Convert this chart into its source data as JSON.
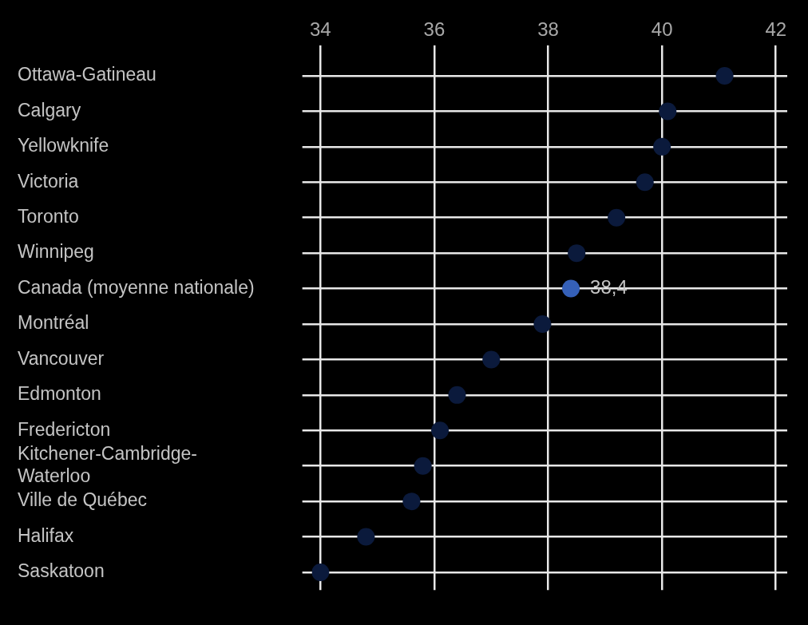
{
  "chart_data": {
    "type": "scatter",
    "orientation": "horizontal",
    "categories": [
      "Ottawa-Gatineau",
      "Calgary",
      "Yellowknife",
      "Victoria",
      "Toronto",
      "Winnipeg",
      "Canada (moyenne nationale)",
      "Montréal",
      "Vancouver",
      "Edmonton",
      "Fredericton",
      "Kitchener-Cambridge-Waterloo",
      "Ville de Québec",
      "Halifax",
      "Saskatoon"
    ],
    "values": [
      41.1,
      40.1,
      40.0,
      39.7,
      39.2,
      38.5,
      38.4,
      37.9,
      37.0,
      36.4,
      36.1,
      35.8,
      35.6,
      34.8,
      34.0
    ],
    "colors": [
      "#0b1a3c",
      "#0b1a3c",
      "#0b1a3c",
      "#0b1a3c",
      "#0b1a3c",
      "#0b1a3c",
      "#3560b8",
      "#0b1a3c",
      "#0b1a3c",
      "#0b1a3c",
      "#0b1a3c",
      "#0b1a3c",
      "#0b1a3c",
      "#0b1a3c",
      "#0b1a3c"
    ],
    "value_labels": [
      null,
      null,
      null,
      null,
      null,
      null,
      "38,4",
      null,
      null,
      null,
      null,
      null,
      null,
      null,
      null
    ],
    "xlim": [
      33.85,
      42.2
    ],
    "xticks": [
      34,
      36,
      38,
      40,
      42
    ],
    "grid": true,
    "marker": "circle",
    "legend": false
  }
}
